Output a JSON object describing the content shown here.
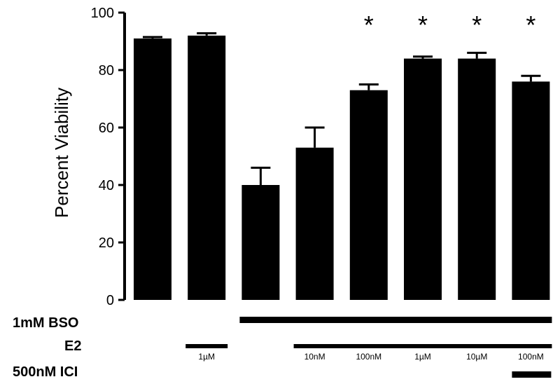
{
  "chart_data": {
    "type": "bar",
    "ylabel": "Percent Viability",
    "ylim": [
      0,
      100
    ],
    "yticks": [
      0,
      20,
      40,
      60,
      80,
      100
    ],
    "grid": false,
    "bar_color": "#000000",
    "values": [
      91,
      92,
      40,
      53,
      73,
      84,
      84,
      76
    ],
    "errors": [
      0.5,
      0.8,
      6,
      7,
      2,
      0.7,
      2,
      2
    ],
    "significance": [
      "",
      "",
      "",
      "",
      "*",
      "*",
      "*",
      "*"
    ],
    "treatments": {
      "bso": {
        "label": "1mM BSO",
        "bars": [
          2,
          3,
          4,
          5,
          6,
          7
        ]
      },
      "e2": {
        "label": "E2",
        "segments": [
          {
            "bars": [
              1,
              1
            ],
            "doses": [
              {
                "bar": 1,
                "text": "1µM"
              }
            ]
          },
          {
            "bars": [
              3,
              7
            ],
            "doses": [
              {
                "bar": 3,
                "text": "10nM"
              },
              {
                "bar": 4,
                "text": "100nM"
              },
              {
                "bar": 5,
                "text": "1µM"
              },
              {
                "bar": 6,
                "text": "10µM"
              },
              {
                "bar": 7,
                "text": "100nM"
              }
            ]
          }
        ]
      },
      "ici": {
        "label": "500nM ICI",
        "bars": [
          7
        ]
      }
    }
  }
}
